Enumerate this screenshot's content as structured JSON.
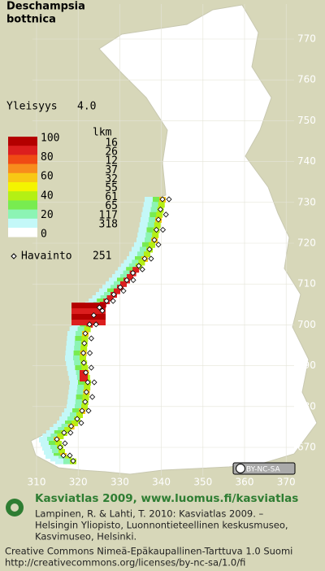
{
  "title": [
    "Deschampsia",
    "bottnica"
  ],
  "frequency": {
    "label": "Yleisyys",
    "value": "4.0"
  },
  "legend": {
    "count_header": "lkm",
    "scale_labels": [
      "100",
      "80",
      "60",
      "40",
      "20",
      "0"
    ],
    "rows": [
      {
        "color": "#b40000",
        "count": "16"
      },
      {
        "color": "#dc1e1e",
        "count": "26"
      },
      {
        "color": "#f04a14",
        "count": "12"
      },
      {
        "color": "#f88c1c",
        "count": "37"
      },
      {
        "color": "#f8c814",
        "count": "32"
      },
      {
        "color": "#f4f400",
        "count": "55"
      },
      {
        "color": "#b4f014",
        "count": "61"
      },
      {
        "color": "#78ec50",
        "count": "65"
      },
      {
        "color": "#8cf4b4",
        "count": "117"
      },
      {
        "color": "#c4f8f8",
        "count": "318"
      },
      {
        "color": "#ffffff",
        "count": ""
      }
    ],
    "observation_label": "Havainto",
    "observation_count": "251"
  },
  "northing_labels": [
    "770",
    "760",
    "750",
    "740",
    "730",
    "720",
    "710",
    "700",
    "690",
    "680",
    "670"
  ],
  "easting_labels": [
    "310",
    "320",
    "330",
    "340",
    "350",
    "360",
    "370"
  ],
  "license_badge": "BY-NC-SA",
  "footer": {
    "heading": "Kasviatlas 2009, www.luomus.fi/kasviatlas",
    "citation": [
      "Lampinen, R. & Lahti, T. 2010: Kasviatlas 2009. –",
      "Helsingin Yliopisto, Luonnontieteellinen keskusmuseo,",
      "Kasvimuseo, Helsinki."
    ],
    "license": [
      "Creative Commons Nimeä-Epäkaupallinen-Tarttuva 1.0 Suomi",
      "http://creativecommons.org/licenses/by-nc-sa/1.0/fi"
    ]
  }
}
